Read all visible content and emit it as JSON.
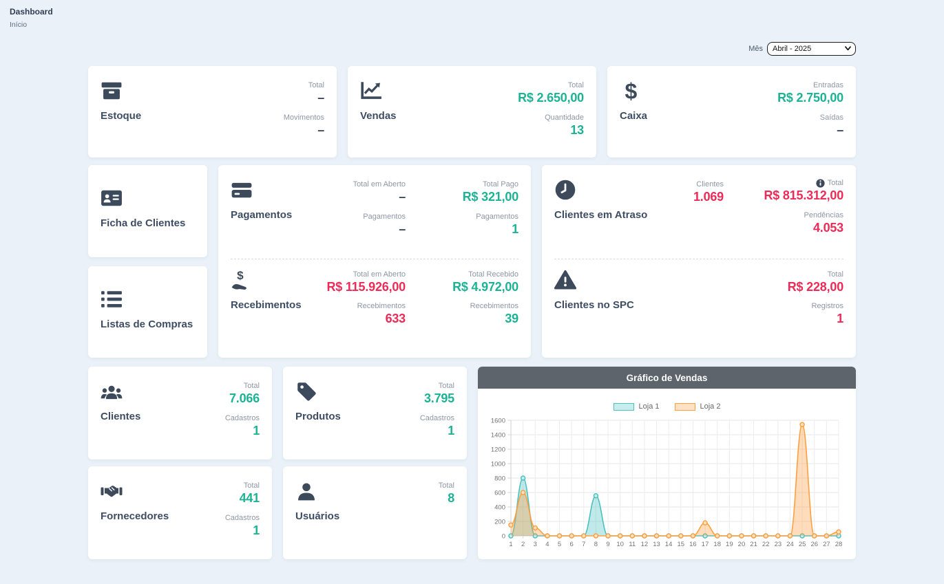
{
  "colors": {
    "page_bg": "#EAF1F8",
    "accent_teal": "#1CB394",
    "accent_red": "#EC2B57",
    "value_dark": "#3A4654",
    "icon_slate": "#3D4A5C",
    "chart_header_bg": "#5D646C",
    "loja1": "#4BC0C0",
    "loja2": "#FF9F40"
  },
  "header": {
    "title": "Dashboard",
    "breadcrumb": "Início"
  },
  "filter": {
    "label": "Mês",
    "selected_option": "Abril - 2025"
  },
  "cards": {
    "estoque": {
      "label": "Estoque",
      "icon": "box-archive-icon",
      "stats": [
        {
          "label": "Total",
          "value": "–",
          "tone": "dark"
        },
        {
          "label": "Movimentos",
          "value": "–",
          "tone": "dark"
        }
      ]
    },
    "vendas": {
      "label": "Vendas",
      "icon": "chart-line-icon",
      "stats": [
        {
          "label": "Total",
          "value": "R$ 2.650,00",
          "tone": "teal"
        },
        {
          "label": "Quantidade",
          "value": "13",
          "tone": "teal"
        }
      ]
    },
    "caixa": {
      "label": "Caixa",
      "icon": "dollar-sign-icon",
      "stats": [
        {
          "label": "Entradas",
          "value": "R$ 2.750,00",
          "tone": "teal"
        },
        {
          "label": "Saídas",
          "value": "–",
          "tone": "dark"
        }
      ]
    },
    "ficha_clientes": {
      "label": "Ficha de Clientes",
      "icon": "address-card-icon"
    },
    "listas_compras": {
      "label": "Listas de Compras",
      "icon": "list-icon"
    },
    "pagamentos": {
      "label": "Pagamentos",
      "icon": "credit-card-icon",
      "col_a": [
        {
          "label": "Total em Aberto",
          "value": "–",
          "tone": "dark"
        },
        {
          "label": "Pagamentos",
          "value": "–",
          "tone": "dark"
        }
      ],
      "col_b": [
        {
          "label": "Total Pago",
          "value": "R$ 321,00",
          "tone": "teal"
        },
        {
          "label": "Pagamentos",
          "value": "1",
          "tone": "teal"
        }
      ]
    },
    "recebimentos": {
      "label": "Recebimentos",
      "icon": "hand-holding-dollar-icon",
      "col_a": [
        {
          "label": "Total em Aberto",
          "value": "R$ 115.926,00",
          "tone": "red"
        },
        {
          "label": "Recebimentos",
          "value": "633",
          "tone": "red"
        }
      ],
      "col_b": [
        {
          "label": "Total Recebido",
          "value": "R$ 4.972,00",
          "tone": "teal"
        },
        {
          "label": "Recebimentos",
          "value": "39",
          "tone": "teal"
        }
      ]
    },
    "clientes_atraso": {
      "label": "Clientes em Atraso",
      "icon": "clock-icon",
      "col_a": [
        {
          "label": "Clientes",
          "value": "1.069",
          "tone": "red"
        }
      ],
      "col_b": [
        {
          "label": "Total",
          "value": "R$ 815.312,00",
          "tone": "red",
          "info_icon": true
        },
        {
          "label": "Pendências",
          "value": "4.053",
          "tone": "red"
        }
      ]
    },
    "clientes_spc": {
      "label": "Clientes no SPC",
      "icon": "triangle-exclamation-icon",
      "col_b": [
        {
          "label": "Total",
          "value": "R$ 228,00",
          "tone": "red"
        },
        {
          "label": "Registros",
          "value": "1",
          "tone": "red"
        }
      ]
    },
    "clientes": {
      "label": "Clientes",
      "icon": "users-icon",
      "stats": [
        {
          "label": "Total",
          "value": "7.066",
          "tone": "teal"
        },
        {
          "label": "Cadastros",
          "value": "1",
          "tone": "teal"
        }
      ]
    },
    "produtos": {
      "label": "Produtos",
      "icon": "tag-icon",
      "stats": [
        {
          "label": "Total",
          "value": "3.795",
          "tone": "teal"
        },
        {
          "label": "Cadastros",
          "value": "1",
          "tone": "teal"
        }
      ]
    },
    "fornecedores": {
      "label": "Fornecedores",
      "icon": "handshake-icon",
      "stats": [
        {
          "label": "Total",
          "value": "441",
          "tone": "teal"
        },
        {
          "label": "Cadastros",
          "value": "1",
          "tone": "teal"
        }
      ]
    },
    "usuarios": {
      "label": "Usuários",
      "icon": "user-icon",
      "stats": [
        {
          "label": "Total",
          "value": "8",
          "tone": "teal"
        }
      ]
    }
  },
  "chart_data": {
    "type": "area",
    "title": "Gráfico de Vendas",
    "x": [
      1,
      2,
      3,
      4,
      5,
      6,
      7,
      8,
      9,
      10,
      11,
      12,
      13,
      14,
      15,
      16,
      17,
      18,
      19,
      20,
      21,
      22,
      23,
      24,
      25,
      26,
      27,
      28
    ],
    "series": [
      {
        "name": "Loja 1",
        "color": "#4BC0C0",
        "values": [
          0,
          800,
          0,
          0,
          0,
          0,
          0,
          555,
          0,
          0,
          0,
          0,
          0,
          0,
          0,
          0,
          0,
          0,
          0,
          0,
          0,
          0,
          0,
          0,
          0,
          0,
          0,
          0
        ]
      },
      {
        "name": "Loja 2",
        "color": "#FF9F40",
        "values": [
          150,
          600,
          110,
          0,
          0,
          0,
          0,
          0,
          0,
          0,
          0,
          0,
          0,
          0,
          0,
          0,
          180,
          0,
          0,
          0,
          0,
          0,
          0,
          0,
          1540,
          0,
          0,
          55
        ]
      }
    ],
    "ylim": [
      0,
      1600
    ],
    "ytick_step": 200,
    "grid": true,
    "legend_position": "top"
  }
}
